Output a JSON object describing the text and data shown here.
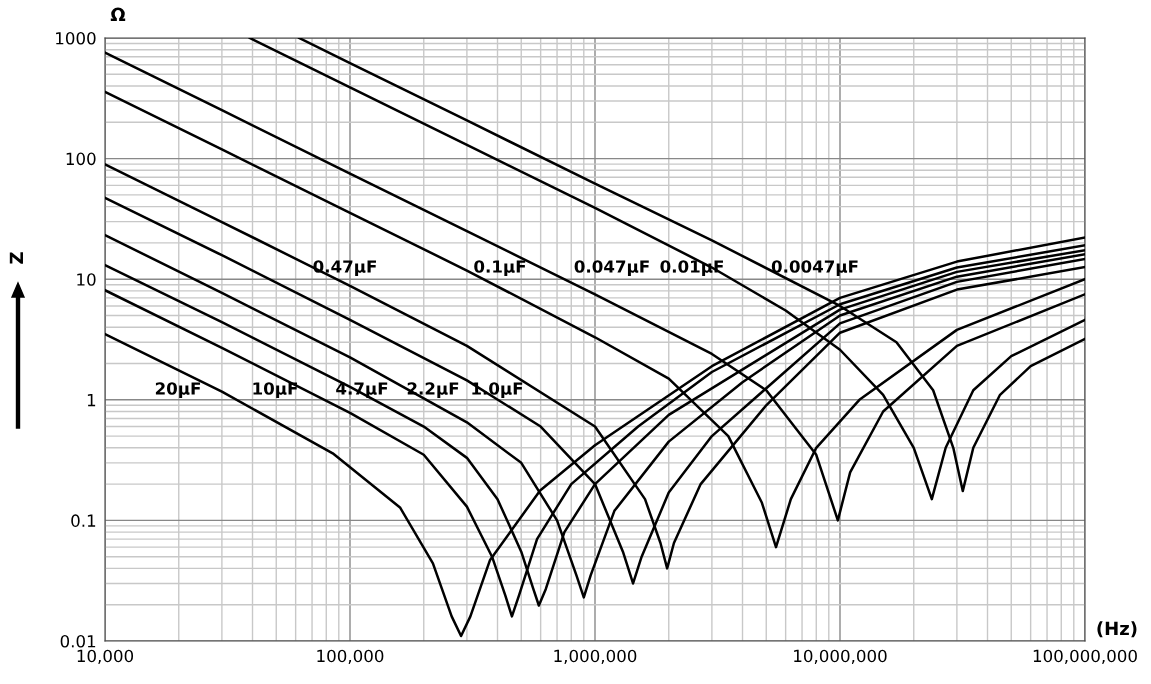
{
  "chart_data": {
    "type": "line",
    "ylabel": "Z",
    "xlabel": "(Hz)",
    "log": "xy",
    "grid": true,
    "marker": "none",
    "line_style": "solid",
    "xlim": [
      10000,
      100000000
    ],
    "ylim": [
      0.01,
      1000
    ],
    "xticks": [
      {
        "value": 10000,
        "label": "10,000"
      },
      {
        "value": 100000,
        "label": "100,000"
      },
      {
        "value": 1000000,
        "label": "1,000,000"
      },
      {
        "value": 10000000,
        "label": "10,000,000"
      },
      {
        "value": 100000000,
        "label": "100,000,000"
      }
    ],
    "yticks": [
      0.01,
      0.1,
      1,
      10,
      100,
      1000
    ],
    "annotations": [
      "Ω",
      "20µF",
      "10µF",
      "4.7µF",
      "2.2µF",
      "1.0µF",
      "0.47µF",
      "0.1µF",
      "0.047µF",
      "0.01µF",
      "0.0047µF"
    ],
    "series": [
      {
        "color": "#000000",
        "x": [
          10000,
          30000,
          85000,
          160000,
          218000,
          260000,
          284000,
          310000,
          373000,
          597000,
          1000000,
          3000000,
          10000000,
          30000000,
          100000000
        ],
        "values": [
          3.5,
          1.17,
          0.36,
          0.128,
          0.044,
          0.016,
          0.011,
          0.016,
          0.047,
          0.177,
          0.42,
          1.9,
          7.0,
          14,
          22.2
        ]
      },
      {
        "color": "#000000",
        "x": [
          10000,
          30000,
          100000,
          200000,
          300000,
          380000,
          430000,
          458000,
          490000,
          580000,
          800000,
          1500000,
          3000000,
          10000000,
          30000000,
          100000000
        ],
        "values": [
          8.1,
          2.7,
          0.78,
          0.35,
          0.13,
          0.05,
          0.024,
          0.016,
          0.024,
          0.07,
          0.2,
          0.6,
          1.7,
          6.2,
          12.5,
          19.1
        ]
      },
      {
        "color": "#000000",
        "x": [
          10000,
          30000,
          100000,
          200000,
          300000,
          400000,
          500000,
          560000,
          590000,
          630000,
          750000,
          1000000,
          2000000,
          10000000,
          30000000,
          100000000
        ],
        "values": [
          13.1,
          4.4,
          1.28,
          0.6,
          0.33,
          0.15,
          0.055,
          0.027,
          0.0197,
          0.027,
          0.08,
          0.2,
          0.75,
          5.6,
          11.5,
          17.4
        ]
      },
      {
        "color": "#000000",
        "x": [
          10000,
          30000,
          100000,
          300000,
          500000,
          700000,
          840000,
          900000,
          960000,
          1200000,
          2000000,
          4000000,
          10000000,
          30000000,
          100000000
        ],
        "values": [
          23.2,
          7.7,
          2.25,
          0.65,
          0.3,
          0.1,
          0.035,
          0.023,
          0.035,
          0.12,
          0.45,
          1.4,
          5.0,
          10.5,
          16.1
        ]
      },
      {
        "color": "#000000",
        "x": [
          10000,
          30000,
          100000,
          300000,
          600000,
          1000000,
          1300000,
          1430000,
          1550000,
          2000000,
          3000000,
          10000000,
          30000000,
          100000000
        ],
        "values": [
          47.3,
          15.8,
          4.6,
          1.45,
          0.6,
          0.2,
          0.055,
          0.03,
          0.05,
          0.17,
          0.5,
          4.3,
          9.5,
          14.7
        ]
      },
      {
        "color": "#000000",
        "x": [
          10000,
          30000,
          100000,
          300000,
          1000000,
          1600000,
          1850000,
          1970000,
          2100000,
          2700000,
          5000000,
          10000000,
          30000000,
          100000000
        ],
        "values": [
          89.5,
          29.8,
          8.8,
          2.8,
          0.6,
          0.15,
          0.065,
          0.04,
          0.065,
          0.2,
          0.9,
          3.6,
          8.2,
          12.6
        ]
      },
      {
        "color": "#000000",
        "x": [
          10000,
          30000,
          100000,
          300000,
          1000000,
          2000000,
          3500000,
          4800000,
          5480000,
          6300000,
          8000000,
          12000000,
          30000000,
          100000000
        ],
        "values": [
          358,
          119,
          35.5,
          11.8,
          3.3,
          1.5,
          0.5,
          0.14,
          0.06,
          0.15,
          0.4,
          1.0,
          3.8,
          10
        ]
      },
      {
        "color": "#000000",
        "x": [
          10000,
          30000,
          100000,
          300000,
          1000000,
          3000000,
          5000000,
          8000000,
          9800000,
          11000000,
          15000000,
          30000000,
          100000000
        ],
        "values": [
          755,
          252,
          75,
          25,
          7.5,
          2.4,
          1.2,
          0.35,
          0.1,
          0.25,
          0.8,
          2.8,
          7.5
        ]
      },
      {
        "color": "#000000",
        "x": [
          39000,
          100000,
          300000,
          1000000,
          3000000,
          6000000,
          10000000,
          15000000,
          20000000,
          23700000,
          27000000,
          35000000,
          50000000,
          100000000
        ],
        "values": [
          1000,
          390,
          130,
          39,
          12.5,
          5.5,
          2.6,
          1.1,
          0.4,
          0.15,
          0.4,
          1.2,
          2.3,
          4.6
        ]
      },
      {
        "color": "#000000",
        "x": [
          62000,
          100000,
          300000,
          1000000,
          3000000,
          10000000,
          17000000,
          24000000,
          29000000,
          31700000,
          35000000,
          45000000,
          60000000,
          100000000
        ],
        "values": [
          1000,
          620,
          207,
          62,
          21,
          6,
          3,
          1.2,
          0.4,
          0.175,
          0.4,
          1.1,
          1.9,
          3.2
        ]
      }
    ]
  }
}
